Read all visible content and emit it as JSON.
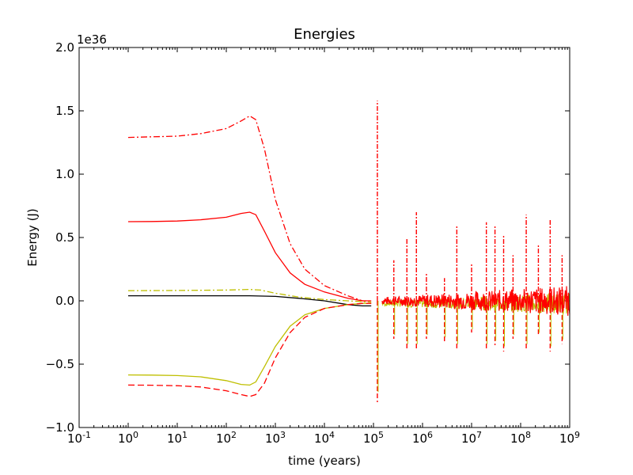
{
  "chart_data": {
    "type": "line",
    "title": "Energies",
    "xlabel": "time (years)",
    "ylabel": "Energy (J)",
    "y_offset_label": "1e36",
    "x_scale": "log",
    "xlim": [
      0.1,
      1000000000
    ],
    "ylim": [
      -1.0,
      2.0
    ],
    "y_unit_multiplier": "1e36",
    "grid": false,
    "legend": "none",
    "x_ticks": [
      {
        "value": 0.1,
        "base": "10",
        "exp": "-1"
      },
      {
        "value": 1,
        "base": "10",
        "exp": "0"
      },
      {
        "value": 10,
        "base": "10",
        "exp": "1"
      },
      {
        "value": 100,
        "base": "10",
        "exp": "2"
      },
      {
        "value": 1000,
        "base": "10",
        "exp": "3"
      },
      {
        "value": 10000,
        "base": "10",
        "exp": "4"
      },
      {
        "value": 100000,
        "base": "10",
        "exp": "5"
      },
      {
        "value": 1000000,
        "base": "10",
        "exp": "6"
      },
      {
        "value": 10000000,
        "base": "10",
        "exp": "7"
      },
      {
        "value": 100000000,
        "base": "10",
        "exp": "8"
      },
      {
        "value": 1000000000,
        "base": "10",
        "exp": "9"
      }
    ],
    "y_ticks": [
      {
        "value": -1.0,
        "label": "−1.0"
      },
      {
        "value": -0.5,
        "label": "−0.5"
      },
      {
        "value": 0.0,
        "label": "0.0"
      },
      {
        "value": 0.5,
        "label": "0.5"
      },
      {
        "value": 1.0,
        "label": "1.0"
      },
      {
        "value": 1.5,
        "label": "1.5"
      },
      {
        "value": 2.0,
        "label": "2.0"
      }
    ],
    "series": [
      {
        "color": "#ff0000",
        "dash": "dashdot",
        "x": [
          1,
          3,
          10,
          30,
          100,
          200,
          300,
          400,
          600,
          1000,
          2000,
          4000,
          10000,
          30000,
          60000,
          90000
        ],
        "y": [
          1.29,
          1.295,
          1.3,
          1.32,
          1.36,
          1.42,
          1.46,
          1.43,
          1.2,
          0.8,
          0.45,
          0.25,
          0.12,
          0.04,
          0.0,
          0.0
        ]
      },
      {
        "color": "#ff0000",
        "dash": "solid",
        "x": [
          1,
          3,
          10,
          30,
          100,
          200,
          300,
          400,
          600,
          1000,
          2000,
          4000,
          10000,
          30000,
          60000,
          90000
        ],
        "y": [
          0.625,
          0.626,
          0.63,
          0.64,
          0.66,
          0.69,
          0.7,
          0.68,
          0.55,
          0.38,
          0.22,
          0.13,
          0.07,
          0.02,
          0.0,
          0.0
        ]
      },
      {
        "color": "#bfbf00",
        "dash": "dashdot",
        "x": [
          1,
          10,
          100,
          300,
          500,
          1000,
          3000,
          10000,
          30000,
          90000
        ],
        "y": [
          0.08,
          0.082,
          0.085,
          0.09,
          0.085,
          0.06,
          0.03,
          0.01,
          0.0,
          -0.01
        ]
      },
      {
        "color": "#000000",
        "dash": "solid",
        "x": [
          1,
          10,
          100,
          300,
          1000,
          3000,
          10000,
          30000,
          60000,
          90000
        ],
        "y": [
          0.04,
          0.04,
          0.04,
          0.04,
          0.035,
          0.02,
          0.0,
          -0.03,
          -0.04,
          -0.04
        ]
      },
      {
        "color": "#bfbf00",
        "dash": "solid",
        "x": [
          1,
          3,
          10,
          30,
          100,
          200,
          300,
          400,
          600,
          1000,
          2000,
          4000,
          10000,
          30000,
          60000,
          90000
        ],
        "y": [
          -0.585,
          -0.586,
          -0.59,
          -0.6,
          -0.63,
          -0.66,
          -0.665,
          -0.64,
          -0.52,
          -0.36,
          -0.2,
          -0.11,
          -0.06,
          -0.03,
          -0.02,
          -0.02
        ]
      },
      {
        "color": "#ff0000",
        "dash": "dashed",
        "x": [
          1,
          3,
          10,
          30,
          100,
          200,
          300,
          400,
          600,
          1000,
          2000,
          4000,
          10000,
          30000,
          60000,
          90000
        ],
        "y": [
          -0.665,
          -0.666,
          -0.67,
          -0.68,
          -0.71,
          -0.74,
          -0.755,
          -0.74,
          -0.65,
          -0.45,
          -0.25,
          -0.13,
          -0.06,
          -0.03,
          -0.02,
          -0.02
        ]
      }
    ],
    "spikes": [
      {
        "x": 120000,
        "top": 1.58,
        "bottom": -0.8
      },
      {
        "x": 260000,
        "top": 0.32,
        "bottom": -0.3
      },
      {
        "x": 480000,
        "top": 0.5,
        "bottom": -0.38
      },
      {
        "x": 750000,
        "top": 0.7,
        "bottom": -0.38
      },
      {
        "x": 1200000,
        "top": 0.22,
        "bottom": -0.3
      },
      {
        "x": 2800000,
        "top": 0.18,
        "bottom": -0.32
      },
      {
        "x": 5000000,
        "top": 0.6,
        "bottom": -0.38
      },
      {
        "x": 10000000,
        "top": 0.3,
        "bottom": -0.25
      },
      {
        "x": 20000000,
        "top": 0.62,
        "bottom": -0.38
      },
      {
        "x": 30000000,
        "top": 0.6,
        "bottom": -0.35
      },
      {
        "x": 45000000,
        "top": 0.52,
        "bottom": -0.4
      },
      {
        "x": 70000000,
        "top": 0.36,
        "bottom": -0.3
      },
      {
        "x": 130000000,
        "top": 0.68,
        "bottom": -0.38
      },
      {
        "x": 230000000,
        "top": 0.45,
        "bottom": -0.28
      },
      {
        "x": 400000000,
        "top": 0.65,
        "bottom": -0.4
      },
      {
        "x": 700000000,
        "top": 0.36,
        "bottom": -0.34
      }
    ]
  }
}
